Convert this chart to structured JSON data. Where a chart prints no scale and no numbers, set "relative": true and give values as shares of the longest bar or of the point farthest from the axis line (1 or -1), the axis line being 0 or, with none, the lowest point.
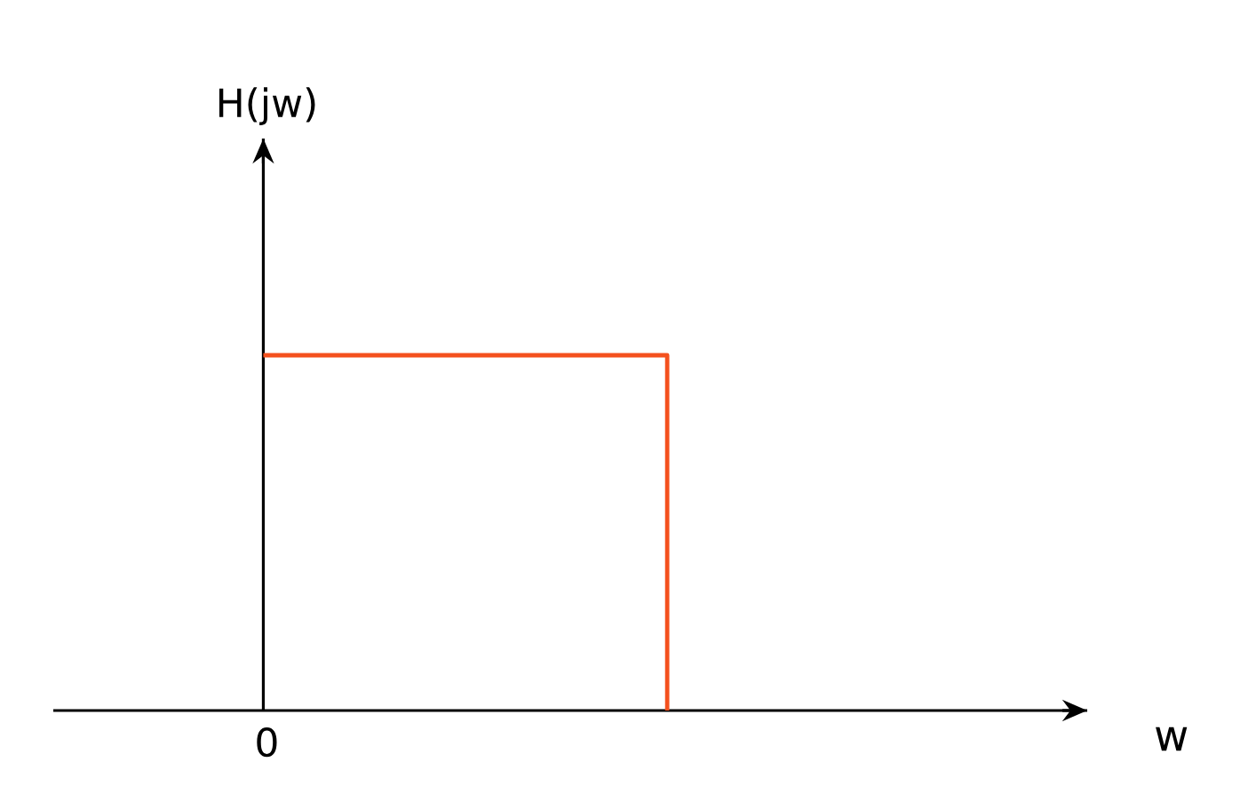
{
  "chart_data": {
    "type": "step",
    "relative": true,
    "xlabel": "w",
    "categories": [
      null,
      null
    ],
    "values": [
      1,
      0
    ],
    "color": "#f4511e",
    "annotations": [
      "H(jw)",
      "0"
    ]
  }
}
